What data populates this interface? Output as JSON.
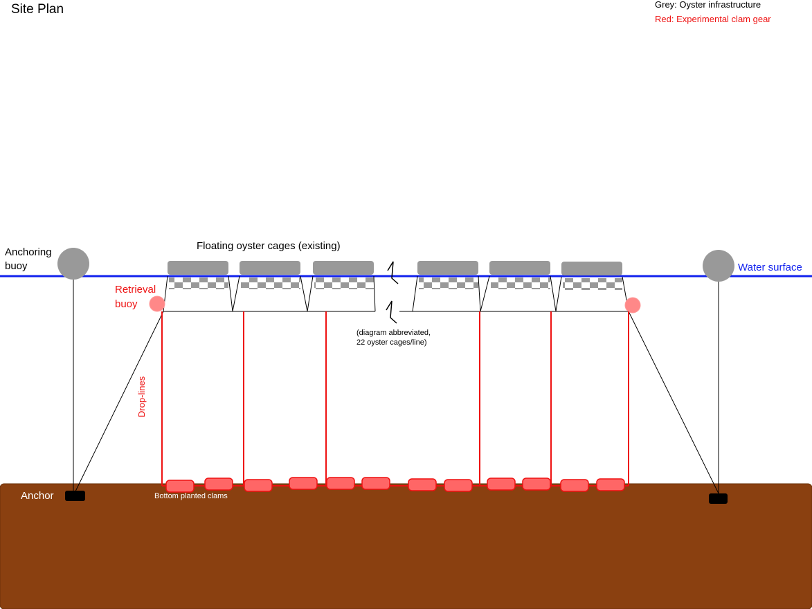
{
  "title": "Site Plan",
  "legend": {
    "grey": "Grey: Oyster infrastructure",
    "red": "Red: Experimental clam gear"
  },
  "labels": {
    "anchoring_buoy": [
      "Anchoring",
      "buoy"
    ],
    "floating_cages": "Floating oyster cages (existing)",
    "water_surface": "Water surface",
    "retrieval_buoy": [
      "Retrieval",
      "buoy"
    ],
    "abbreviated_note": [
      "(diagram abbreviated,",
      "22 oyster cages/line)"
    ],
    "drop_lines": "Drop-lines",
    "anchor": "Anchor",
    "bottom_clams": "Bottom planted clams"
  },
  "colors": {
    "grey": "#999999",
    "red": "#ee1111",
    "light_red": "#ff6666",
    "water": "#1122ee",
    "seabed": "#8a4010"
  }
}
